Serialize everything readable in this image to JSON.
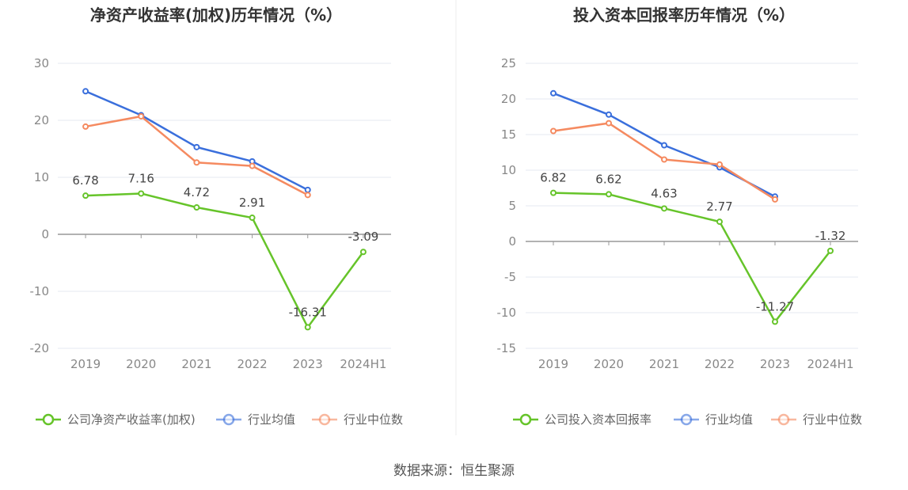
{
  "source_label": "数据来源：恒生聚源",
  "colors": {
    "company": "#66c42a",
    "avg": "#3a6fdc",
    "median": "#f58a60",
    "grid": "#e6e9f2",
    "axis": "#999999"
  },
  "chart_data": [
    {
      "type": "line",
      "title": "净资产收益率(加权)历年情况（%）",
      "categories": [
        "2019",
        "2020",
        "2021",
        "2022",
        "2023",
        "2024H1"
      ],
      "ylim": [
        -20,
        30
      ],
      "yticks": [
        30,
        20,
        10,
        0,
        -10,
        -20
      ],
      "grid": true,
      "legend_position": "bottom",
      "series": [
        {
          "name": "公司净资产收益率(加权)",
          "key": "company",
          "values": [
            6.78,
            7.16,
            4.72,
            2.91,
            -16.31,
            -3.09
          ],
          "labels": [
            "6.78",
            "7.16",
            "4.72",
            "2.91",
            "-16.31",
            "-3.09"
          ]
        },
        {
          "name": "行业均值",
          "key": "avg",
          "values": [
            25.1,
            20.9,
            15.3,
            12.8,
            7.8,
            null
          ]
        },
        {
          "name": "行业中位数",
          "key": "median",
          "values": [
            18.9,
            20.7,
            12.6,
            12.0,
            6.9,
            null
          ]
        }
      ]
    },
    {
      "type": "line",
      "title": "投入资本回报率历年情况（%）",
      "categories": [
        "2019",
        "2020",
        "2021",
        "2022",
        "2023",
        "2024H1"
      ],
      "ylim": [
        -15,
        25
      ],
      "yticks": [
        25,
        20,
        15,
        10,
        5,
        0,
        -5,
        -10,
        -15
      ],
      "grid": true,
      "legend_position": "bottom",
      "series": [
        {
          "name": "公司投入资本回报率",
          "key": "company",
          "values": [
            6.82,
            6.62,
            4.63,
            2.77,
            -11.27,
            -1.32
          ],
          "labels": [
            "6.82",
            "6.62",
            "4.63",
            "2.77",
            "-11.27",
            "-1.32"
          ]
        },
        {
          "name": "行业均值",
          "key": "avg",
          "values": [
            20.8,
            17.8,
            13.5,
            10.4,
            6.3,
            null
          ]
        },
        {
          "name": "行业中位数",
          "key": "median",
          "values": [
            15.5,
            16.6,
            11.5,
            10.8,
            5.9,
            null
          ]
        }
      ]
    }
  ]
}
